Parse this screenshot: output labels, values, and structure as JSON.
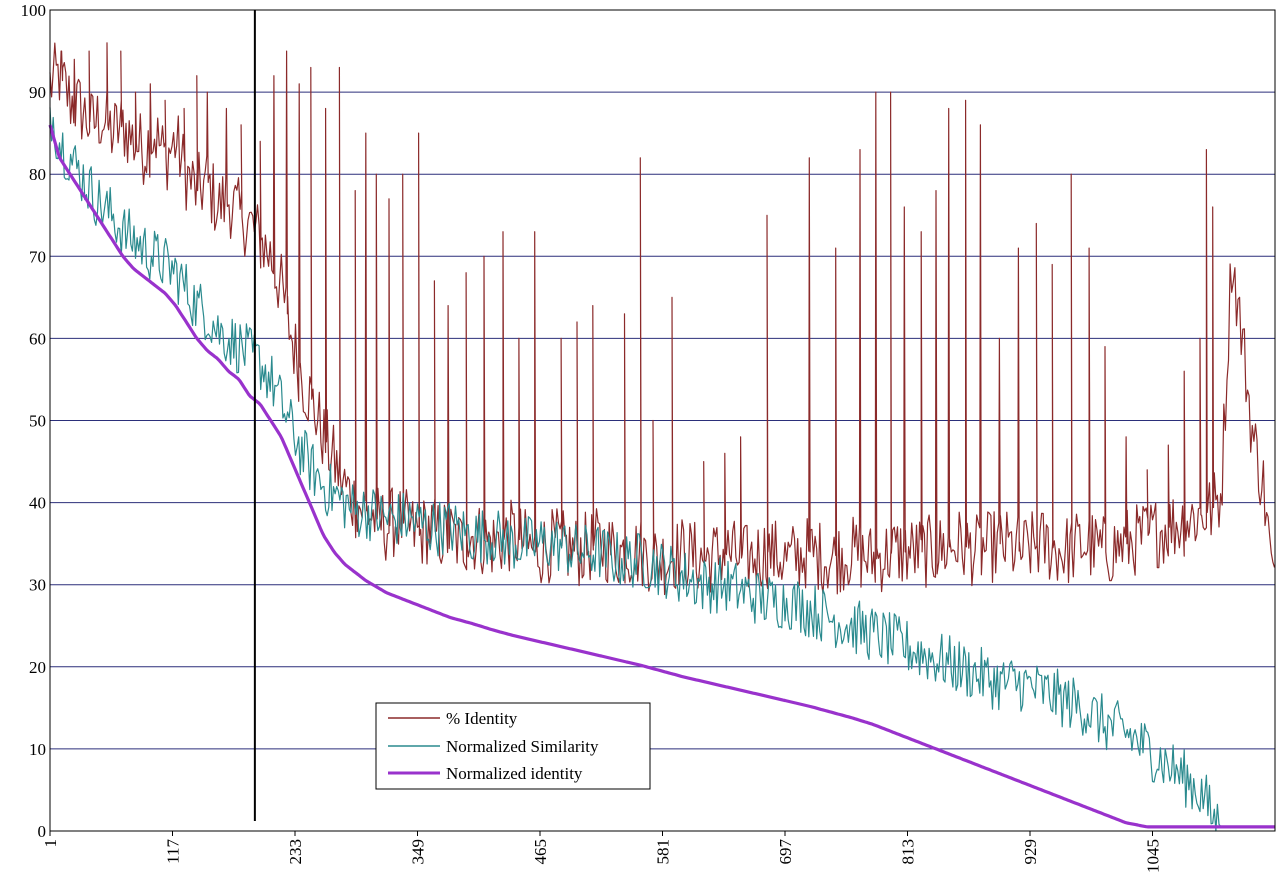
{
  "chart_data": {
    "type": "line",
    "title": "",
    "xlabel": "",
    "ylabel": "",
    "xlim": [
      1,
      1161
    ],
    "ylim": [
      0,
      100
    ],
    "y_ticks": [
      "0",
      "10",
      "20",
      "30",
      "40",
      "50",
      "60",
      "70",
      "80",
      "90",
      "100"
    ],
    "x_ticks": [
      {
        "value": 1,
        "label": "1"
      },
      {
        "value": 117,
        "label": "117"
      },
      {
        "value": 233,
        "label": "233"
      },
      {
        "value": 349,
        "label": "349"
      },
      {
        "value": 465,
        "label": "465"
      },
      {
        "value": 581,
        "label": "581"
      },
      {
        "value": 697,
        "label": "697"
      },
      {
        "value": 813,
        "label": "813"
      },
      {
        "value": 929,
        "label": "929"
      },
      {
        "value": 1045,
        "label": "1045"
      }
    ],
    "grid": "horizontal",
    "legend_position": "bottom-left",
    "vertical_marker_x": 195,
    "series": [
      {
        "name": "% Identity",
        "color": "#8b2a2a",
        "x": [
          1,
          10,
          20,
          30,
          40,
          50,
          60,
          70,
          80,
          90,
          100,
          110,
          120,
          130,
          140,
          150,
          160,
          170,
          180,
          190,
          200,
          210,
          220,
          230,
          240,
          250,
          260,
          270,
          280,
          290,
          300,
          310,
          320,
          330,
          340,
          350,
          360,
          370,
          380,
          390,
          400,
          420,
          440,
          460,
          480,
          500,
          520,
          540,
          560,
          580,
          600,
          620,
          640,
          660,
          680,
          700,
          720,
          740,
          760,
          780,
          800,
          820,
          840,
          860,
          880,
          900,
          920,
          940,
          960,
          980,
          1000,
          1020,
          1040,
          1060,
          1080,
          1100,
          1110,
          1120,
          1130,
          1140,
          1150,
          1161
        ],
        "values": [
          91,
          92,
          89,
          88,
          86,
          87,
          85,
          86,
          84,
          83,
          85,
          82,
          84,
          80,
          78,
          79,
          76,
          77,
          75,
          74,
          72,
          70,
          66,
          60,
          55,
          52,
          48,
          45,
          42,
          40,
          39,
          38,
          37,
          38,
          37,
          36,
          37,
          36,
          36,
          35,
          36,
          35,
          36,
          34,
          35,
          34,
          35,
          34,
          34,
          33,
          34,
          33,
          34,
          33,
          34,
          33,
          34,
          33,
          34,
          33,
          34,
          34,
          34,
          35,
          34,
          35,
          34,
          35,
          34,
          35,
          34,
          35,
          36,
          37,
          38,
          39,
          41,
          70,
          60,
          48,
          42,
          28
        ],
        "spikes": [
          [
            12,
            95
          ],
          [
            24,
            94
          ],
          [
            38,
            95
          ],
          [
            55,
            96
          ],
          [
            68,
            95
          ],
          [
            82,
            90
          ],
          [
            96,
            91
          ],
          [
            110,
            89
          ],
          [
            128,
            88
          ],
          [
            140,
            92
          ],
          [
            150,
            90
          ],
          [
            168,
            88
          ],
          [
            182,
            86
          ],
          [
            200,
            84
          ],
          [
            213,
            92
          ],
          [
            225,
            95
          ],
          [
            237,
            91
          ],
          [
            248,
            93
          ],
          [
            262,
            88
          ],
          [
            275,
            93
          ],
          [
            290,
            78
          ],
          [
            300,
            85
          ],
          [
            310,
            80
          ],
          [
            322,
            77
          ],
          [
            335,
            80
          ],
          [
            350,
            85
          ],
          [
            365,
            67
          ],
          [
            378,
            64
          ],
          [
            395,
            68
          ],
          [
            412,
            70
          ],
          [
            430,
            73
          ],
          [
            445,
            60
          ],
          [
            460,
            73
          ],
          [
            485,
            60
          ],
          [
            500,
            62
          ],
          [
            515,
            64
          ],
          [
            545,
            63
          ],
          [
            560,
            82
          ],
          [
            572,
            50
          ],
          [
            590,
            65
          ],
          [
            620,
            45
          ],
          [
            640,
            46
          ],
          [
            655,
            48
          ],
          [
            680,
            75
          ],
          [
            720,
            82
          ],
          [
            745,
            71
          ],
          [
            768,
            83
          ],
          [
            783,
            90
          ],
          [
            797,
            90
          ],
          [
            810,
            76
          ],
          [
            826,
            73
          ],
          [
            840,
            78
          ],
          [
            852,
            88
          ],
          [
            868,
            89
          ],
          [
            882,
            86
          ],
          [
            900,
            60
          ],
          [
            918,
            71
          ],
          [
            935,
            74
          ],
          [
            950,
            69
          ],
          [
            968,
            80
          ],
          [
            985,
            71
          ],
          [
            1000,
            59
          ],
          [
            1020,
            48
          ],
          [
            1040,
            44
          ],
          [
            1060,
            47
          ],
          [
            1075,
            56
          ],
          [
            1090,
            60
          ],
          [
            1096,
            83
          ],
          [
            1102,
            76
          ]
        ]
      },
      {
        "name": "Normalized Similarity",
        "color": "#2a8a8e",
        "x": [
          1,
          10,
          20,
          30,
          40,
          50,
          60,
          70,
          80,
          90,
          100,
          110,
          120,
          130,
          140,
          150,
          160,
          170,
          180,
          190,
          200,
          210,
          220,
          230,
          240,
          250,
          260,
          270,
          280,
          290,
          300,
          320,
          340,
          360,
          380,
          400,
          420,
          440,
          460,
          480,
          500,
          520,
          540,
          560,
          580,
          600,
          620,
          640,
          660,
          680,
          700,
          720,
          740,
          760,
          780,
          800,
          820,
          840,
          860,
          880,
          900,
          920,
          940,
          960,
          980,
          1000,
          1020,
          1040,
          1060,
          1080,
          1095,
          1100,
          1110,
          1120,
          1140,
          1161
        ],
        "values": [
          88,
          84,
          82,
          80,
          78,
          76,
          75,
          73,
          72,
          71,
          70,
          69,
          68,
          66,
          64,
          63,
          61,
          60,
          59,
          58,
          57,
          55,
          52,
          49,
          46,
          44,
          42,
          41,
          40,
          39,
          39,
          38,
          38,
          37,
          37,
          36,
          36,
          35,
          35,
          35,
          34,
          34,
          33,
          33,
          32,
          31,
          30,
          30,
          29,
          28,
          28,
          27,
          26,
          25,
          24,
          23,
          22,
          21,
          20,
          19,
          18,
          18,
          17,
          16,
          15,
          13,
          12,
          10,
          8,
          6,
          4,
          2,
          0.5,
          0.5,
          0.5,
          0.5
        ]
      },
      {
        "name": "Normalized identity",
        "color": "#9932cc",
        "x": [
          1,
          10,
          20,
          30,
          40,
          50,
          60,
          70,
          80,
          90,
          100,
          110,
          120,
          130,
          140,
          150,
          160,
          170,
          180,
          190,
          200,
          210,
          220,
          230,
          240,
          250,
          260,
          270,
          280,
          290,
          300,
          320,
          340,
          360,
          380,
          400,
          420,
          440,
          460,
          480,
          500,
          520,
          540,
          560,
          580,
          600,
          620,
          640,
          660,
          680,
          700,
          720,
          740,
          760,
          780,
          800,
          820,
          840,
          860,
          880,
          900,
          920,
          940,
          960,
          980,
          1000,
          1020,
          1040,
          1060,
          1080,
          1095,
          1100,
          1110,
          1120,
          1140,
          1161
        ],
        "values": [
          86,
          82,
          80,
          78,
          76,
          74,
          72,
          70,
          68.5,
          67.5,
          66.5,
          65.5,
          64,
          62,
          60,
          58.5,
          57.5,
          56,
          55,
          53,
          52,
          50,
          48,
          45,
          42,
          39,
          36,
          34,
          32.5,
          31.5,
          30.5,
          29,
          28,
          27,
          26,
          25.3,
          24.5,
          23.8,
          23.2,
          22.6,
          22,
          21.4,
          20.8,
          20.2,
          19.5,
          18.8,
          18.2,
          17.6,
          17,
          16.4,
          15.8,
          15.2,
          14.5,
          13.8,
          13,
          12,
          11,
          10,
          9,
          8,
          7,
          6,
          5,
          4,
          3,
          2,
          1,
          0.5,
          0.5,
          0.5,
          0.5,
          0.5,
          0.5,
          0.5,
          0.5,
          0.5
        ]
      }
    ]
  }
}
